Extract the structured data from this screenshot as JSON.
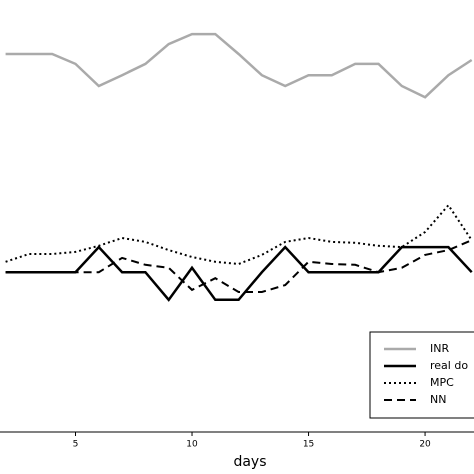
{
  "chart_data": {
    "type": "line",
    "x_label": "days",
    "x": [
      2,
      3,
      4,
      5,
      6,
      7,
      8,
      9,
      10,
      11,
      12,
      13,
      14,
      15,
      16,
      17,
      18,
      19,
      20,
      21,
      22
    ],
    "xlim": [
      1.76,
      22.1
    ],
    "xticks": [
      5,
      10,
      15,
      20
    ],
    "ylim": [
      0,
      10
    ],
    "legend": "lower right",
    "series": [
      {
        "name": "INR",
        "color": "#aaaaaa",
        "dash": "solid",
        "line_width": 2.5,
        "values": [
          8.75,
          8.75,
          8.75,
          8.52,
          8.01,
          8.26,
          8.52,
          8.98,
          9.21,
          9.21,
          8.75,
          8.26,
          8.01,
          8.26,
          8.26,
          8.52,
          8.52,
          8.01,
          7.75,
          8.26,
          8.61
        ]
      },
      {
        "name": "real do",
        "color": "#000000",
        "dash": "solid",
        "line_width": 2.5,
        "values": [
          3.7,
          3.7,
          3.7,
          3.7,
          4.28,
          3.7,
          3.7,
          3.06,
          3.8,
          3.06,
          3.06,
          3.7,
          4.28,
          3.7,
          3.7,
          3.7,
          3.7,
          4.28,
          4.28,
          4.28,
          3.7
        ]
      },
      {
        "name": "MPC",
        "color": "#000000",
        "dash": "dotted",
        "line_width": 2,
        "values": [
          3.94,
          4.12,
          4.12,
          4.17,
          4.31,
          4.49,
          4.4,
          4.21,
          4.05,
          3.94,
          3.89,
          4.1,
          4.4,
          4.49,
          4.4,
          4.38,
          4.31,
          4.28,
          4.63,
          5.25,
          4.44
        ]
      },
      {
        "name": "NN",
        "color": "#000000",
        "dash": "dashed",
        "line_width": 2,
        "values": [
          3.7,
          3.7,
          3.7,
          3.7,
          3.7,
          4.03,
          3.87,
          3.8,
          3.29,
          3.56,
          3.24,
          3.24,
          3.4,
          3.94,
          3.89,
          3.87,
          3.7,
          3.8,
          4.1,
          4.21,
          4.44
        ]
      }
    ]
  }
}
